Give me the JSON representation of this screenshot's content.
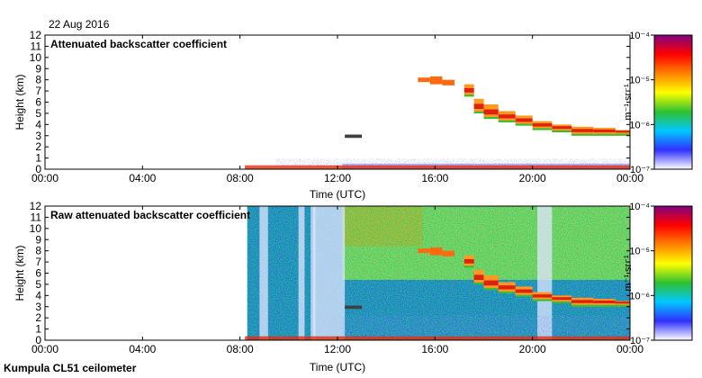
{
  "page": {
    "date": "22 Aug 2016",
    "footer": "Kumpula CL51 ceilometer"
  },
  "chart_data": [
    {
      "type": "heatmap",
      "title": "Attenuated backscatter coefficient",
      "xlabel": "Time (UTC)",
      "ylabel": "Height (km)",
      "x_ticks": [
        "00:00",
        "04:00",
        "08:00",
        "12:00",
        "16:00",
        "20:00",
        "00:00"
      ],
      "y_ticks": [
        "0",
        "1",
        "2",
        "3",
        "4",
        "5",
        "6",
        "7",
        "8",
        "9",
        "10",
        "11",
        "12"
      ],
      "ylim": [
        0,
        12
      ],
      "colorbar": {
        "scale": "log",
        "ticks": [
          "10⁻⁷",
          "10⁻⁶",
          "10⁻⁵",
          "10⁻⁴"
        ],
        "unit": "m⁻¹ sr⁻¹",
        "colors": [
          "#ffffff",
          "#3030ff",
          "#00c8ff",
          "#30c030",
          "#ffff00",
          "#ff8000",
          "#ff0000",
          "#800080"
        ]
      }
    },
    {
      "type": "heatmap",
      "title": "Raw attenuated backscatter coefficient",
      "xlabel": "Time (UTC)",
      "ylabel": "Height (km)",
      "x_ticks": [
        "00:00",
        "04:00",
        "08:00",
        "12:00",
        "16:00",
        "20:00",
        "00:00"
      ],
      "y_ticks": [
        "0",
        "1",
        "2",
        "3",
        "4",
        "5",
        "6",
        "7",
        "8",
        "9",
        "10",
        "11",
        "12"
      ],
      "ylim": [
        0,
        12
      ],
      "colorbar": {
        "scale": "log",
        "ticks": [
          "10⁻⁷",
          "10⁻⁶",
          "10⁻⁵",
          "10⁻⁴"
        ],
        "unit": "m⁻¹ sr⁻¹",
        "colors": [
          "#ffffff",
          "#3030ff",
          "#00c8ff",
          "#30c030",
          "#ffff00",
          "#ff8000",
          "#ff0000",
          "#800080"
        ]
      }
    }
  ]
}
